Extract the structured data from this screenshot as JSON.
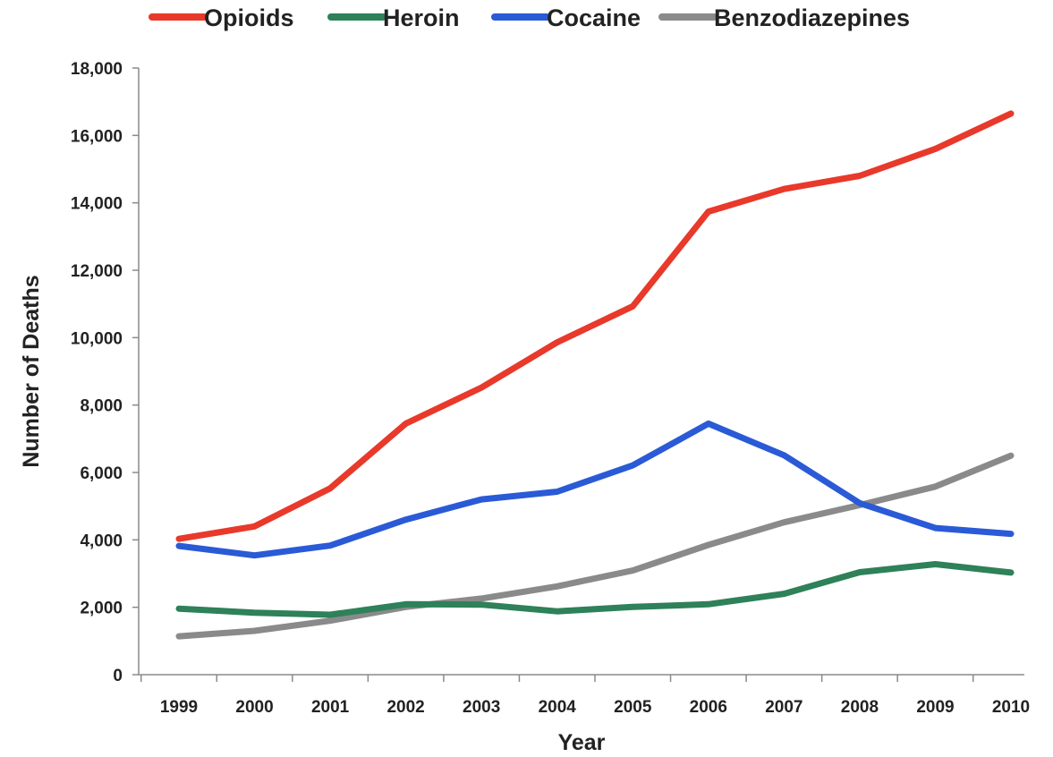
{
  "chart_data": {
    "type": "line",
    "title": "",
    "xlabel": "Year",
    "ylabel": "Number of Deaths",
    "x": [
      "1999",
      "2000",
      "2001",
      "2002",
      "2003",
      "2004",
      "2005",
      "2006",
      "2007",
      "2008",
      "2009",
      "2010"
    ],
    "ylim": [
      0,
      18000
    ],
    "yticks": [
      0,
      2000,
      4000,
      6000,
      8000,
      10000,
      12000,
      14000,
      16000,
      18000
    ],
    "ytick_labels": [
      "0",
      "2,000",
      "4,000",
      "6,000",
      "8,000",
      "10,000",
      "12,000",
      "14,000",
      "16,000",
      "18,000"
    ],
    "grid": false,
    "legend_position": "top",
    "series": [
      {
        "name": "Opioids",
        "color": "#e8392b",
        "values": [
          4030,
          4400,
          5530,
          7450,
          8520,
          9860,
          10930,
          13740,
          14410,
          14800,
          15600,
          16650
        ]
      },
      {
        "name": "Heroin",
        "color": "#2e8158",
        "values": [
          1960,
          1840,
          1780,
          2090,
          2080,
          1880,
          2010,
          2090,
          2400,
          3040,
          3280,
          3030
        ]
      },
      {
        "name": "Cocaine",
        "color": "#2a5ad6",
        "values": [
          3820,
          3540,
          3830,
          4600,
          5200,
          5430,
          6210,
          7450,
          6510,
          5090,
          4350,
          4180
        ]
      },
      {
        "name": "Benzodiazepines",
        "color": "#8a8a8a",
        "values": [
          1140,
          1300,
          1600,
          2010,
          2260,
          2620,
          3090,
          3850,
          4520,
          5030,
          5580,
          6500
        ]
      }
    ]
  }
}
